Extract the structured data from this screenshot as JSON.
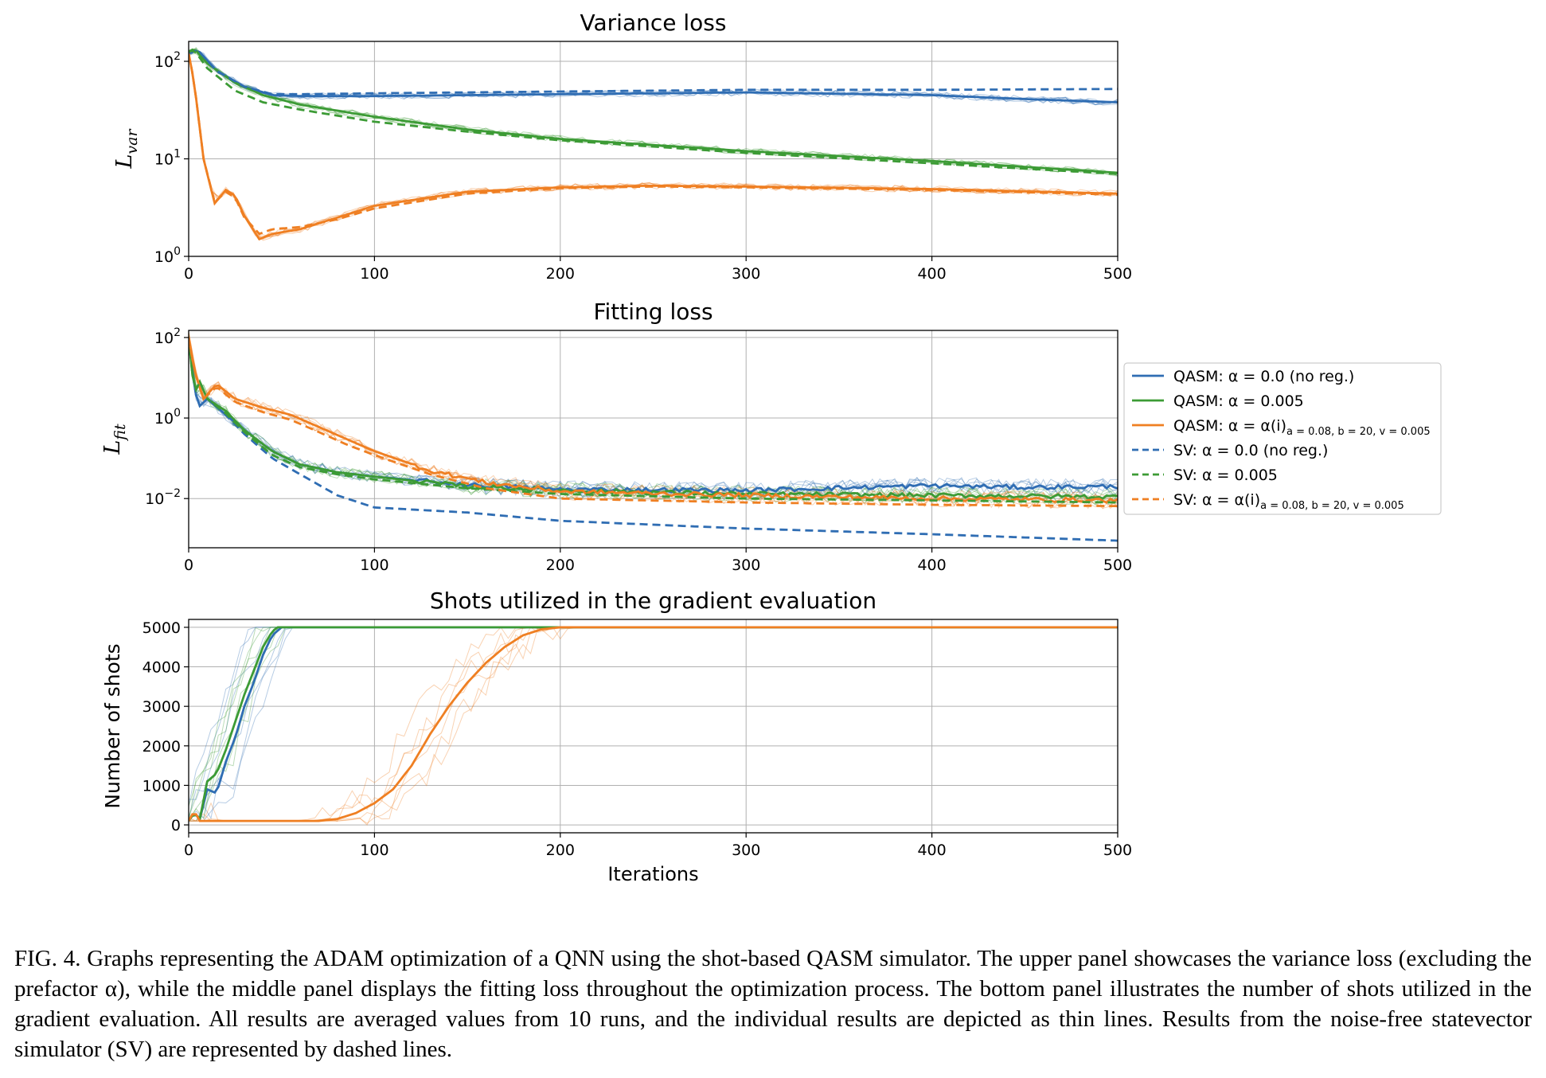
{
  "chart_data": [
    {
      "type": "line",
      "title": "Variance loss",
      "ylabel": "L_var",
      "xlabel": "",
      "xlim": [
        0,
        500
      ],
      "ylim": [
        1,
        160
      ],
      "y_scale": "log",
      "x_ticks": [
        "0",
        "100",
        "200",
        "300",
        "400",
        "500"
      ],
      "y_ticks": [
        {
          "base": "10",
          "exp": "0"
        },
        {
          "base": "10",
          "exp": "1"
        },
        {
          "base": "10",
          "exp": "2"
        }
      ],
      "grid": true,
      "series": [
        {
          "name": "QASM: α = 0.0 (no reg.)",
          "color": "#2f6db3",
          "style": "solid",
          "x": [
            0,
            5,
            15,
            30,
            45,
            60,
            100,
            200,
            300,
            400,
            450,
            500
          ],
          "y": [
            120,
            130,
            80,
            55,
            45,
            44,
            44,
            46,
            48,
            45,
            41,
            38
          ]
        },
        {
          "name": "QASM: α = 0.005",
          "color": "#3c9b35",
          "style": "solid",
          "x": [
            0,
            3,
            10,
            25,
            40,
            60,
            100,
            150,
            200,
            300,
            400,
            500
          ],
          "y": [
            125,
            135,
            95,
            60,
            45,
            36,
            27,
            20,
            16,
            12,
            9.5,
            7.2
          ]
        },
        {
          "name": "QASM: α = α(i)",
          "color": "#ef7f22",
          "style": "solid",
          "x": [
            0,
            3,
            8,
            14,
            20,
            25,
            30,
            38,
            45,
            60,
            80,
            100,
            150,
            200,
            250,
            300,
            400,
            500
          ],
          "y": [
            120,
            60,
            10,
            3.5,
            4.8,
            4.2,
            2.6,
            1.5,
            1.7,
            1.9,
            2.5,
            3.3,
            4.6,
            5.1,
            5.3,
            5.2,
            4.9,
            4.4
          ]
        },
        {
          "name": "SV: α = 0.0 (no reg.)",
          "color": "#2f6db3",
          "style": "dashed",
          "x": [
            0,
            5,
            15,
            30,
            45,
            60,
            100,
            200,
            300,
            400,
            500
          ],
          "y": [
            120,
            130,
            80,
            55,
            46,
            46,
            47,
            49,
            51,
            51,
            52
          ]
        },
        {
          "name": "SV: α = 0.005",
          "color": "#3c9b35",
          "style": "dashed",
          "x": [
            0,
            3,
            10,
            25,
            40,
            60,
            100,
            150,
            200,
            300,
            400,
            500
          ],
          "y": [
            125,
            130,
            85,
            50,
            38,
            32,
            24,
            19,
            15.5,
            11.5,
            9,
            7
          ]
        },
        {
          "name": "SV: α = α(i)",
          "color": "#ef7f22",
          "style": "dashed",
          "x": [
            0,
            3,
            8,
            14,
            20,
            25,
            30,
            38,
            45,
            60,
            80,
            100,
            150,
            200,
            250,
            300,
            400,
            500
          ],
          "y": [
            120,
            60,
            10,
            3.6,
            4.6,
            4.0,
            2.5,
            1.7,
            1.9,
            2.0,
            2.4,
            3.1,
            4.4,
            5.0,
            5.2,
            5.1,
            4.8,
            4.3
          ]
        }
      ]
    },
    {
      "type": "line",
      "title": "Fitting loss",
      "ylabel": "L_fit",
      "xlabel": "",
      "xlim": [
        0,
        500
      ],
      "ylim": [
        0.0006,
        150
      ],
      "y_scale": "log",
      "x_ticks": [
        "0",
        "100",
        "200",
        "300",
        "400",
        "500"
      ],
      "y_ticks": [
        {
          "base": "10",
          "exp": "−2"
        },
        {
          "base": "10",
          "exp": "0"
        },
        {
          "base": "10",
          "exp": "2"
        }
      ],
      "grid": true,
      "legend_position": "right",
      "series": [
        {
          "name": "QASM: α = 0.0 (no reg.)",
          "color": "#2f6db3",
          "style": "solid",
          "x": [
            0,
            3,
            6,
            10,
            20,
            30,
            45,
            60,
            80,
            100,
            150,
            200,
            300,
            400,
            450,
            500
          ],
          "y": [
            100,
            5,
            2,
            3,
            1.2,
            0.5,
            0.15,
            0.07,
            0.045,
            0.035,
            0.022,
            0.017,
            0.016,
            0.021,
            0.019,
            0.02
          ]
        },
        {
          "name": "QASM: α = 0.005",
          "color": "#3c9b35",
          "style": "solid",
          "x": [
            0,
            3,
            6,
            10,
            20,
            30,
            45,
            60,
            80,
            100,
            150,
            200,
            300,
            400,
            500
          ],
          "y": [
            100,
            4,
            8,
            3,
            1.5,
            0.5,
            0.15,
            0.07,
            0.045,
            0.035,
            0.02,
            0.016,
            0.013,
            0.012,
            0.011
          ]
        },
        {
          "name": "QASM: α = α(i)",
          "color": "#ef7f22",
          "style": "solid",
          "x": [
            0,
            3,
            8,
            15,
            25,
            40,
            55,
            70,
            85,
            100,
            130,
            160,
            200,
            300,
            400,
            500
          ],
          "y": [
            100,
            15,
            3,
            7,
            3,
            1.8,
            1.2,
            0.6,
            0.3,
            0.15,
            0.05,
            0.025,
            0.015,
            0.012,
            0.01,
            0.009
          ]
        },
        {
          "name": "SV: α = 0.0 (no reg.)",
          "color": "#2f6db3",
          "style": "dashed",
          "x": [
            0,
            3,
            6,
            10,
            20,
            30,
            45,
            60,
            80,
            100,
            150,
            200,
            300,
            400,
            500
          ],
          "y": [
            100,
            5,
            2,
            3,
            1.2,
            0.4,
            0.1,
            0.04,
            0.012,
            0.006,
            0.0045,
            0.0028,
            0.0018,
            0.0013,
            0.0009
          ]
        },
        {
          "name": "SV: α = 0.005",
          "color": "#3c9b35",
          "style": "dashed",
          "x": [
            0,
            3,
            6,
            10,
            20,
            30,
            45,
            60,
            80,
            100,
            150,
            200,
            300,
            400,
            500
          ],
          "y": [
            100,
            4,
            8,
            3,
            1.3,
            0.45,
            0.12,
            0.06,
            0.04,
            0.03,
            0.018,
            0.013,
            0.01,
            0.009,
            0.008
          ]
        },
        {
          "name": "SV: α = α(i)",
          "color": "#ef7f22",
          "style": "dashed",
          "x": [
            0,
            3,
            8,
            15,
            25,
            40,
            55,
            70,
            85,
            100,
            130,
            160,
            200,
            300,
            400,
            500
          ],
          "y": [
            100,
            15,
            3,
            6,
            2.5,
            1.4,
            0.9,
            0.45,
            0.22,
            0.12,
            0.04,
            0.018,
            0.01,
            0.008,
            0.007,
            0.0065
          ]
        }
      ]
    },
    {
      "type": "line",
      "title": "Shots utilized in the gradient evaluation",
      "ylabel": "Number of shots",
      "xlabel": "Iterations",
      "xlim": [
        0,
        500
      ],
      "ylim": [
        -200,
        5200
      ],
      "y_scale": "linear",
      "x_ticks": [
        "0",
        "100",
        "200",
        "300",
        "400",
        "500"
      ],
      "y_ticks": [
        {
          "label": "0",
          "value": 0
        },
        {
          "label": "1000",
          "value": 1000
        },
        {
          "label": "2000",
          "value": 2000
        },
        {
          "label": "3000",
          "value": 3000
        },
        {
          "label": "4000",
          "value": 4000
        },
        {
          "label": "5000",
          "value": 5000
        }
      ],
      "grid": true,
      "series": [
        {
          "name": "QASM: α = 0.0 (no reg.)",
          "color": "#2f6db3",
          "style": "solid",
          "x": [
            0,
            3,
            6,
            10,
            15,
            20,
            25,
            30,
            35,
            40,
            45,
            50,
            500
          ],
          "y": [
            100,
            300,
            150,
            900,
            800,
            1600,
            2200,
            3000,
            3600,
            4300,
            4800,
            5000,
            5000
          ]
        },
        {
          "name": "QASM: α = 0.005",
          "color": "#3c9b35",
          "style": "solid",
          "x": [
            0,
            3,
            6,
            10,
            15,
            20,
            25,
            30,
            35,
            40,
            45,
            48,
            500
          ],
          "y": [
            100,
            300,
            150,
            1100,
            1300,
            1900,
            2600,
            3300,
            3900,
            4500,
            4900,
            5000,
            5000
          ]
        },
        {
          "name": "QASM: α = α(i)",
          "color": "#ef7f22",
          "style": "solid",
          "x": [
            0,
            3,
            6,
            10,
            70,
            80,
            90,
            100,
            110,
            120,
            130,
            140,
            150,
            160,
            170,
            180,
            190,
            200,
            500
          ],
          "y": [
            100,
            350,
            100,
            100,
            100,
            150,
            300,
            550,
            900,
            1500,
            2300,
            3000,
            3600,
            4100,
            4500,
            4800,
            4950,
            5000,
            5000
          ]
        }
      ]
    }
  ],
  "legend": [
    {
      "prefix": "QASM: ",
      "text": "α = 0.0 (no reg.)",
      "sub": "",
      "color": "#2f6db3",
      "style": "solid"
    },
    {
      "prefix": "QASM: ",
      "text": "α = 0.005",
      "sub": "",
      "color": "#3c9b35",
      "style": "solid"
    },
    {
      "prefix": "QASM: ",
      "text": "α = α(i)",
      "sub": "a = 0.08, b = 20, v = 0.005",
      "color": "#ef7f22",
      "style": "solid"
    },
    {
      "prefix": "SV: ",
      "text": "α = 0.0 (no reg.)",
      "sub": "",
      "color": "#2f6db3",
      "style": "dashed"
    },
    {
      "prefix": "SV: ",
      "text": "α = 0.005",
      "sub": "",
      "color": "#3c9b35",
      "style": "dashed"
    },
    {
      "prefix": "SV: ",
      "text": "α = α(i)",
      "sub": "a = 0.08, b = 20, v = 0.005",
      "color": "#ef7f22",
      "style": "dashed"
    }
  ],
  "caption": "FIG. 4. Graphs representing the ADAM optimization of a QNN using the shot-based QASM simulator. The upper panel showcases the variance loss (excluding the prefactor α), while the middle panel displays the fitting loss throughout the optimization process. The bottom panel illustrates the number of shots utilized in the gradient evaluation. All results are averaged values from 10 runs, and the individual results are depicted as thin lines. Results from the noise-free statevector simulator (SV) are represented by dashed lines."
}
